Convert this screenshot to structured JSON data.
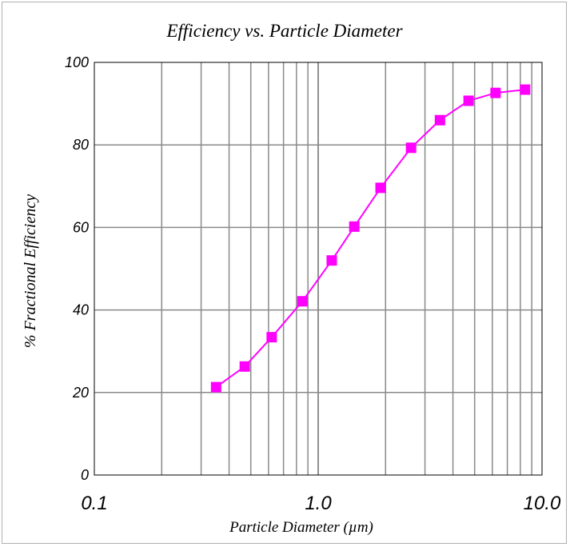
{
  "chart_data": {
    "type": "line",
    "title": "Efficiency vs. Particle Diameter",
    "xlabel": "Particle Diameter (µm)",
    "ylabel": "% Fractional Efficiency",
    "x_scale": "log",
    "xlim": [
      0.1,
      10.0
    ],
    "ylim": [
      0,
      100
    ],
    "x_ticks": [
      "0.1",
      "1.0",
      "10.0"
    ],
    "y_ticks": [
      "0",
      "20",
      "40",
      "60",
      "80",
      "100"
    ],
    "grid": true,
    "legend": "none",
    "series": [
      {
        "color": "#ff00ff",
        "marker": "square",
        "x": [
          0.35,
          0.47,
          0.62,
          0.85,
          1.15,
          1.45,
          1.9,
          2.6,
          3.5,
          4.7,
          6.2,
          8.4
        ],
        "y": [
          21.3,
          26.3,
          33.4,
          42.1,
          52.0,
          60.2,
          69.6,
          79.3,
          86.0,
          90.7,
          92.6,
          93.4
        ]
      }
    ]
  }
}
